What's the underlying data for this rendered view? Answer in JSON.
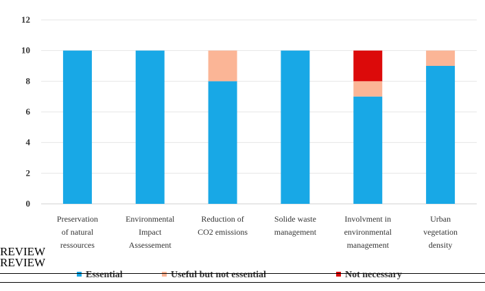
{
  "chart_data": {
    "type": "bar",
    "stacked": true,
    "categories": [
      [
        "Preservation",
        "of natural",
        "ressources"
      ],
      [
        "Environmental",
        "Impact",
        "Assessement"
      ],
      [
        "Reduction of",
        "CO2 emissions"
      ],
      [
        "Solide waste",
        "management"
      ],
      [
        "Involvment in",
        "environmental",
        "management"
      ],
      [
        "Urban",
        "vegetation",
        "density"
      ]
    ],
    "series": [
      {
        "name": "Essential",
        "color": "#18a8e6",
        "values": [
          10,
          10,
          8,
          10,
          7,
          9
        ]
      },
      {
        "name": "Useful but not essential",
        "color": "#fbb596",
        "values": [
          0,
          0,
          2,
          0,
          1,
          1
        ]
      },
      {
        "name": "Not necessary",
        "color": "#dc0a0a",
        "values": [
          0,
          0,
          0,
          0,
          2,
          0
        ]
      }
    ],
    "ylim": [
      0,
      12
    ],
    "yticks": [
      0,
      2,
      4,
      6,
      8,
      10,
      12
    ],
    "grid": true,
    "legend_position": "bottom"
  },
  "overlay": {
    "watermark_line1": "REVIEW",
    "watermark_line2": "REVIEW"
  }
}
